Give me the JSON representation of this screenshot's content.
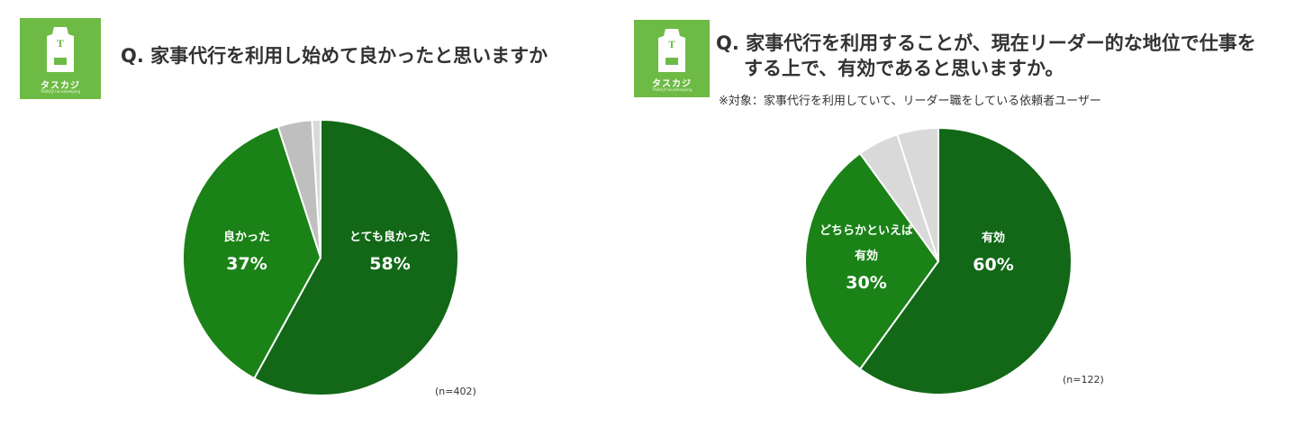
{
  "colors": {
    "logo_bg": "#6dbb45",
    "dark_green": "#126817",
    "mid_green": "#1a8217",
    "gray": "#bfbfbf",
    "light_gray": "#d9d9d9"
  },
  "logo": {
    "text": "タスカジ",
    "sub": "TASKAJI housekeeping",
    "letter": "T",
    "icon": "apron-icon"
  },
  "left": {
    "title": "Q. 家事代行を利用し始めて良かったと思いますか",
    "n_label": "(n=402)"
  },
  "right": {
    "title_line1": "Q. 家事代行を利用することが、現在リーダー的な地位で仕事を",
    "title_line2": "する上で、有効であると思いますか。",
    "note": "※対象：家事代行を利用していて、リーダー職をしている依頼者ユーザー",
    "n_label": "(n=122)"
  },
  "chart_data": [
    {
      "type": "pie",
      "title": "Q. 家事代行を利用し始めて良かったと思いますか",
      "slices": [
        {
          "label": "とても良かった",
          "value": 58,
          "value_label": "58%",
          "color": "#126817"
        },
        {
          "label": "良かった",
          "value": 37,
          "value_label": "37%",
          "color": "#1a8217"
        },
        {
          "label": "",
          "value": 4,
          "value_label": "",
          "color": "#bfbfbf"
        },
        {
          "label": "",
          "value": 1,
          "value_label": "",
          "color": "#d9d9d9"
        }
      ],
      "start": "12 o'clock, clockwise",
      "note": "(n=402)"
    },
    {
      "type": "pie",
      "title": "Q. 家事代行を利用することが、現在リーダー的な地位で仕事をする上で、有効であると思いますか。",
      "slices": [
        {
          "label": "有効",
          "value": 60,
          "value_label": "60%",
          "color": "#126817"
        },
        {
          "label": "どちらかといえば 有効",
          "value": 30,
          "value_label": "30%",
          "color": "#1a8217"
        },
        {
          "label": "",
          "value": 5,
          "value_label": "",
          "color": "#d9d9d9"
        },
        {
          "label": "",
          "value": 5,
          "value_label": "",
          "color": "#d9d9d9"
        }
      ],
      "start": "12 o'clock, clockwise",
      "note": "(n=122)"
    }
  ]
}
